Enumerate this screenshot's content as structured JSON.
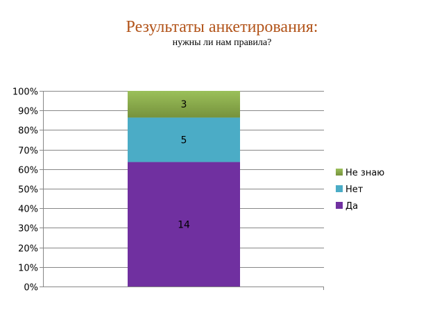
{
  "header": {
    "title": "Результаты анкетирования:",
    "subtitle": "нужны ли нам правила?"
  },
  "chart_data": {
    "type": "bar",
    "stacked": "percent",
    "categories": [
      ""
    ],
    "series": [
      {
        "name": "Да",
        "values": [
          14
        ],
        "color": "#7030a0"
      },
      {
        "name": "Нет",
        "values": [
          5
        ],
        "color": "#4bacc6"
      },
      {
        "name": "Не знаю",
        "values": [
          3
        ],
        "color": "#8db04a"
      }
    ],
    "yticks": [
      "0%",
      "10%",
      "20%",
      "30%",
      "40%",
      "50%",
      "60%",
      "70%",
      "80%",
      "90%",
      "100%"
    ],
    "ylim": [
      0,
      100
    ],
    "grid": true,
    "legend": "right",
    "legend_order": [
      "Не знаю",
      "Нет",
      "Да"
    ],
    "data_labels": true
  }
}
